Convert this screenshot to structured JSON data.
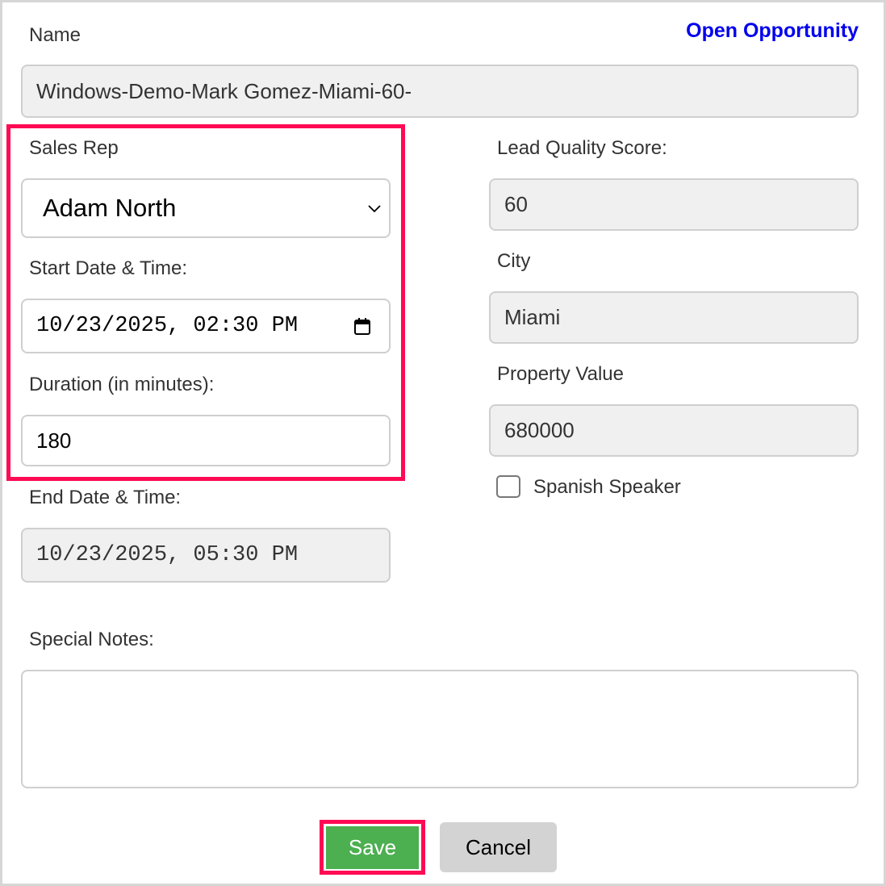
{
  "header": {
    "link": "Open Opportunity",
    "link_color": "#0000ee"
  },
  "name": {
    "label": "Name",
    "value": "Windows-Demo-Mark Gomez-Miami-60-"
  },
  "sales_rep": {
    "label": "Sales Rep",
    "value": "Adam North"
  },
  "start": {
    "label": "Start Date & Time:",
    "value": "10/23/2025, 02:30 PM"
  },
  "duration": {
    "label": "Duration (in minutes):",
    "value": "180"
  },
  "end": {
    "label": "End Date & Time:",
    "value": "10/23/2025, 05:30 PM"
  },
  "lead": {
    "label": "Lead Quality Score:",
    "value": "60"
  },
  "city": {
    "label": "City",
    "value": "Miami"
  },
  "property": {
    "label": "Property Value",
    "value": "680000"
  },
  "spanish": {
    "label": "Spanish Speaker",
    "checked": false
  },
  "notes": {
    "label": "Special Notes:",
    "value": ""
  },
  "buttons": {
    "save": "Save",
    "cancel": "Cancel",
    "save_color": "#4caf50",
    "highlight_color": "#ff0a54"
  }
}
